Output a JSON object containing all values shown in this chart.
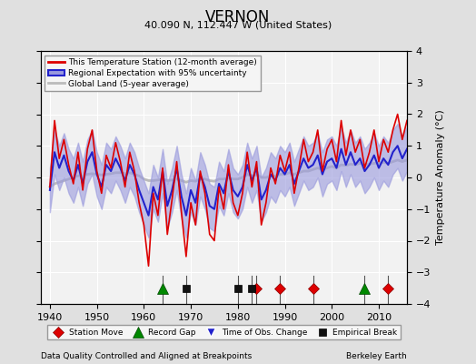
{
  "title": "VERNON",
  "subtitle": "40.090 N, 112.447 W (United States)",
  "xlabel_bottom": "Data Quality Controlled and Aligned at Breakpoints",
  "xlabel_right": "Berkeley Earth",
  "ylabel": "Temperature Anomaly (°C)",
  "xlim": [
    1938,
    2016
  ],
  "ylim": [
    -4,
    4
  ],
  "yticks": [
    -4,
    -3,
    -2,
    -1,
    0,
    1,
    2,
    3,
    4
  ],
  "xticks": [
    1940,
    1950,
    1960,
    1970,
    1980,
    1990,
    2000,
    2010
  ],
  "bg_color": "#e0e0e0",
  "plot_bg_color": "#f2f2f2",
  "grid_color": "#ffffff",
  "red_line_color": "#dd0000",
  "blue_line_color": "#2222cc",
  "blue_fill_color": "#9999dd",
  "gray_line_color": "#bbbbbb",
  "legend_items": [
    {
      "label": "This Temperature Station (12-month average)",
      "color": "#dd0000",
      "type": "line"
    },
    {
      "label": "Regional Expectation with 95% uncertainty",
      "color": "#2222cc",
      "type": "band"
    },
    {
      "label": "Global Land (5-year average)",
      "color": "#bbbbbb",
      "type": "line"
    }
  ],
  "marker_events": {
    "station_move": {
      "years": [
        1984,
        1989,
        1996,
        2012
      ],
      "color": "#dd0000",
      "marker": "D",
      "label": "Station Move"
    },
    "record_gap": {
      "years": [
        1964,
        2007
      ],
      "color": "#008800",
      "marker": "^",
      "label": "Record Gap"
    },
    "time_obs_change": {
      "years": [],
      "color": "#2222cc",
      "marker": "v",
      "label": "Time of Obs. Change"
    },
    "empirical_break": {
      "years": [
        1969,
        1980,
        1983
      ],
      "color": "#111111",
      "marker": "s",
      "label": "Empirical Break"
    }
  },
  "red_data": [
    -0.3,
    1.8,
    0.6,
    1.2,
    0.4,
    -0.2,
    0.8,
    -0.4,
    0.9,
    1.5,
    0.2,
    -0.5,
    0.7,
    0.3,
    1.1,
    0.5,
    -0.3,
    0.8,
    0.2,
    -0.8,
    -1.5,
    -2.8,
    -0.5,
    -1.2,
    0.3,
    -1.8,
    -0.7,
    0.5,
    -1.1,
    -2.5,
    -0.8,
    -1.5,
    0.2,
    -0.5,
    -1.8,
    -2.0,
    -0.3,
    -1.0,
    0.4,
    -0.8,
    -1.2,
    -0.5,
    0.8,
    -0.3,
    0.5,
    -1.5,
    -0.8,
    0.3,
    -0.2,
    0.7,
    0.2,
    0.8,
    -0.5,
    0.3,
    1.2,
    0.5,
    0.8,
    1.5,
    0.2,
    0.9,
    1.2,
    0.5,
    1.8,
    0.7,
    1.5,
    0.8,
    1.2,
    0.3,
    0.8,
    1.5,
    0.5,
    1.2,
    0.8,
    1.5,
    2.0,
    1.2,
    1.8
  ],
  "blue_center": [
    -0.4,
    0.8,
    0.3,
    0.7,
    0.2,
    -0.1,
    0.4,
    -0.2,
    0.5,
    0.8,
    0.1,
    -0.3,
    0.4,
    0.2,
    0.6,
    0.3,
    -0.1,
    0.4,
    0.1,
    -0.4,
    -0.8,
    -1.2,
    -0.3,
    -0.7,
    0.2,
    -0.9,
    -0.4,
    0.3,
    -0.6,
    -1.2,
    -0.4,
    -0.8,
    0.1,
    -0.3,
    -0.9,
    -1.0,
    -0.2,
    -0.5,
    0.2,
    -0.4,
    -0.6,
    -0.3,
    0.4,
    -0.1,
    0.3,
    -0.7,
    -0.4,
    0.1,
    -0.1,
    0.3,
    0.1,
    0.4,
    -0.2,
    0.2,
    0.6,
    0.3,
    0.4,
    0.7,
    0.1,
    0.5,
    0.6,
    0.3,
    0.9,
    0.4,
    0.8,
    0.4,
    0.6,
    0.2,
    0.4,
    0.7,
    0.3,
    0.6,
    0.4,
    0.8,
    1.0,
    0.6,
    0.9
  ],
  "blue_uncertainty": 0.7,
  "gray_data": [
    -0.3,
    -0.2,
    -0.15,
    -0.1,
    -0.05,
    0.0,
    0.05,
    0.05,
    0.1,
    0.12,
    0.1,
    0.08,
    0.1,
    0.12,
    0.15,
    0.15,
    0.12,
    0.15,
    0.1,
    0.05,
    -0.05,
    -0.1,
    -0.1,
    -0.08,
    -0.05,
    -0.1,
    -0.08,
    -0.05,
    -0.1,
    -0.15,
    -0.1,
    -0.12,
    -0.05,
    -0.05,
    -0.1,
    -0.12,
    -0.05,
    -0.05,
    0.0,
    -0.05,
    -0.05,
    0.0,
    0.1,
    0.05,
    0.1,
    0.0,
    0.0,
    0.05,
    0.05,
    0.1,
    0.1,
    0.15,
    0.1,
    0.15,
    0.2,
    0.2,
    0.25,
    0.3,
    0.25,
    0.3,
    0.35,
    0.3,
    0.4,
    0.38,
    0.42,
    0.4,
    0.45,
    0.4,
    0.42,
    0.45,
    0.45,
    0.48,
    0.45,
    0.5,
    0.55,
    0.5,
    0.55
  ]
}
